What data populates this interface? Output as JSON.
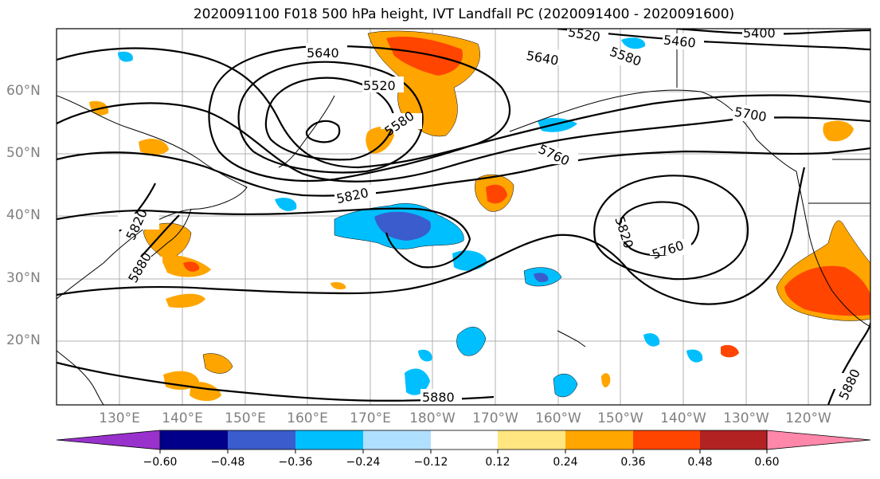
{
  "title": "2020091100 F018 500 hPa height, IVT Landfall PC (2020091400 - 2020091600)",
  "map": {
    "lat_ticks": [
      "60°N",
      "50°N",
      "40°N",
      "30°N",
      "20°N"
    ],
    "lon_ticks": [
      "130°E",
      "140°E",
      "150°E",
      "160°E",
      "170°E",
      "180°W",
      "170°W",
      "160°W",
      "150°W",
      "140°W",
      "130°W",
      "120°W"
    ],
    "contour_labels": [
      "5640",
      "5520",
      "5640",
      "5520",
      "5580",
      "5460",
      "5400",
      "5580",
      "5700",
      "5760",
      "5820",
      "5820",
      "5760",
      "5820",
      "5880",
      "5820",
      "5880",
      "5880"
    ],
    "contour_color": "#000000",
    "grid_color": "#b0b0b0"
  },
  "colorbar": {
    "colors": [
      "#9932cc",
      "#00008b",
      "#3a5ccc",
      "#00bfff",
      "#b0e0ff",
      "#ffffff",
      "#ffe680",
      "#ffa500",
      "#ff4500",
      "#b22222",
      "#ff88aa"
    ],
    "tick_labels": [
      "−0.60",
      "−0.48",
      "−0.36",
      "−0.24",
      "−0.12",
      "0.12",
      "0.24",
      "0.36",
      "0.48",
      "0.60"
    ]
  }
}
